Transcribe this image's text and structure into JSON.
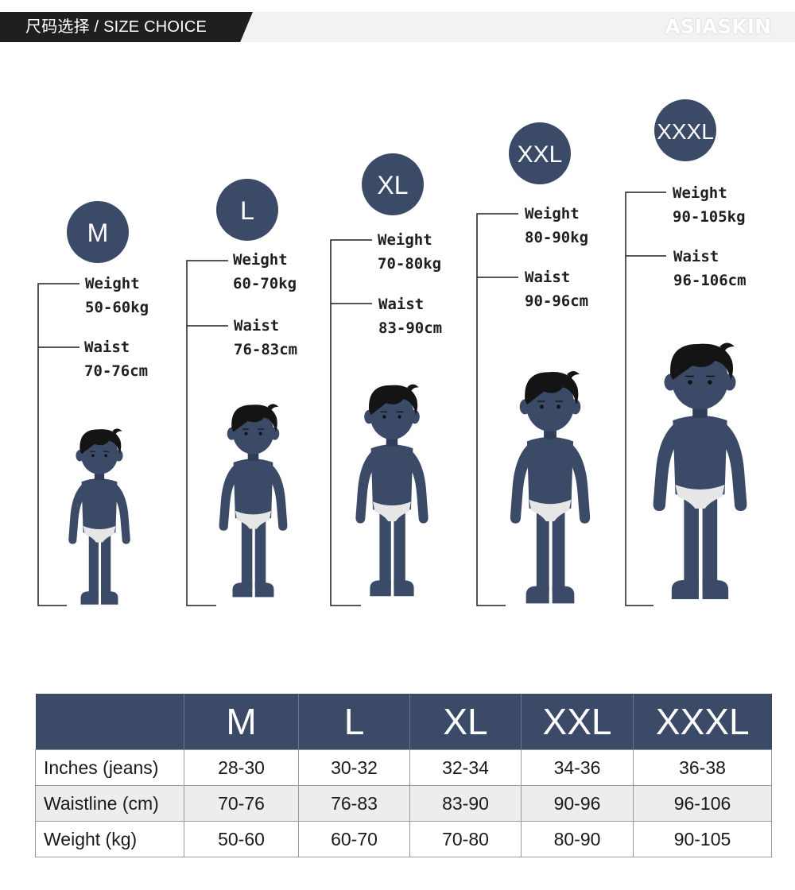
{
  "header": {
    "title": "尺码选择 / SIZE CHOICE",
    "brand": "ASIASKIN"
  },
  "colors": {
    "navy": "#3b4a66",
    "header_dark": "#1f1f1f",
    "header_light": "#f2f2f2"
  },
  "figures": [
    {
      "size": "M",
      "weight_label": "Weight",
      "weight": "50-60kg",
      "waist_label": "Waist",
      "waist": "70-76cm"
    },
    {
      "size": "L",
      "weight_label": "Weight",
      "weight": "60-70kg",
      "waist_label": "Waist",
      "waist": "76-83cm"
    },
    {
      "size": "XL",
      "weight_label": "Weight",
      "weight": "70-80kg",
      "waist_label": "Waist",
      "waist": "83-90cm"
    },
    {
      "size": "XXL",
      "weight_label": "Weight",
      "weight": "80-90kg",
      "waist_label": "Waist",
      "waist": "90-96cm"
    },
    {
      "size": "XXXL",
      "weight_label": "Weight",
      "weight": "90-105kg",
      "waist_label": "Waist",
      "waist": "96-106cm"
    }
  ],
  "table": {
    "headers": [
      "",
      "M",
      "L",
      "XL",
      "XXL",
      "XXXL"
    ],
    "rows": [
      {
        "label": "Inches (jeans)",
        "values": [
          "28-30",
          "30-32",
          "32-34",
          "34-36",
          "36-38"
        ]
      },
      {
        "label": "Waistline (cm)",
        "values": [
          "70-76",
          "76-83",
          "83-90",
          "90-96",
          "96-106"
        ]
      },
      {
        "label": "Weight (kg)",
        "values": [
          "50-60",
          "60-70",
          "70-80",
          "80-90",
          "90-105"
        ]
      }
    ]
  }
}
